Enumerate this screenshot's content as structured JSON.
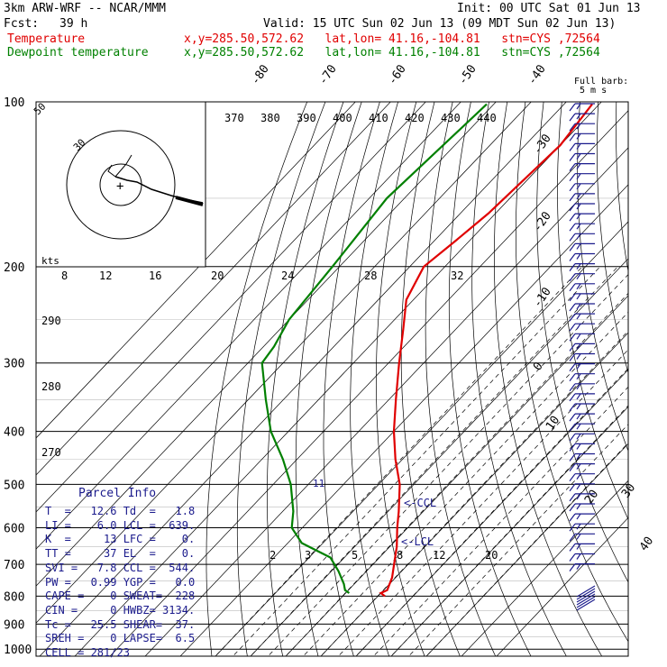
{
  "header": {
    "model": "3km ARW-WRF -- NCAR/MMM",
    "init": "Init: 00 UTC Sat 01 Jun 13",
    "fcst_label": "Fcst:",
    "fcst_value": "39 h",
    "valid": "Valid: 15 UTC Sun 02 Jun 13 (09 MDT Sun 02 Jun 13)",
    "temp_label": "Temperature",
    "temp_info": "x,y=285.50,572.62   lat,lon= 41.16,-104.81   stn=CYS ,72564",
    "dew_label": "Dewpoint temperature",
    "dew_info": "x,y=285.50,572.62   lat,lon= 41.16,-104.81   stn=CYS ,72564",
    "barb_legend_1": "Full barb:",
    "barb_legend_2": "5 m s",
    "hodo_units": "kts"
  },
  "chart_data": {
    "type": "skew-t",
    "pressure_ticks": [
      100,
      200,
      300,
      400,
      500,
      600,
      700,
      800,
      900,
      1000
    ],
    "isotherm_labels": [
      "-80",
      "-70",
      "-60",
      "-50",
      "-40",
      "-30",
      "-20",
      "-10",
      "0",
      "10",
      "20",
      "30",
      "40"
    ],
    "theta_labels": [
      "370",
      "380",
      "390",
      "400",
      "410",
      "420",
      "430",
      "440"
    ],
    "theta_left_labels": [
      "290",
      "280",
      "270"
    ],
    "mixing_ratio_labels": [
      "2",
      "3",
      "5",
      "8",
      "12",
      "20"
    ],
    "hodograph_ring_labels": [
      "8",
      "12",
      "16",
      "20",
      "24",
      "28",
      "32"
    ],
    "hodograph_corner_label": "50",
    "hodograph_ring_small": "30",
    "lcl_labels": [
      "<-CCL",
      "<-LCL"
    ],
    "temperature_profile": [
      [
        101,
        -62
      ],
      [
        120,
        -60
      ],
      [
        160,
        -62
      ],
      [
        180,
        -64
      ],
      [
        200,
        -66
      ],
      [
        230,
        -62
      ],
      [
        260,
        -55
      ],
      [
        300,
        -47
      ],
      [
        350,
        -38
      ],
      [
        400,
        -30
      ],
      [
        450,
        -22
      ],
      [
        500,
        -14
      ],
      [
        560,
        -7
      ],
      [
        600,
        -3
      ],
      [
        650,
        2
      ],
      [
        700,
        6
      ],
      [
        740,
        9
      ],
      [
        780,
        11
      ],
      [
        790,
        10
      ],
      [
        800,
        12
      ]
    ],
    "dewpoint_profile": [
      [
        101,
        -92
      ],
      [
        150,
        -95
      ],
      [
        200,
        -92
      ],
      [
        250,
        -90
      ],
      [
        280,
        -87
      ],
      [
        300,
        -86
      ],
      [
        350,
        -75
      ],
      [
        400,
        -65
      ],
      [
        450,
        -54
      ],
      [
        500,
        -45
      ],
      [
        560,
        -37
      ],
      [
        600,
        -33
      ],
      [
        640,
        -26
      ],
      [
        680,
        -14
      ],
      [
        720,
        -8
      ],
      [
        760,
        -3
      ],
      [
        780,
        -1
      ],
      [
        790,
        1
      ]
    ],
    "wind_barb_count": 47
  },
  "parcel_info": {
    "title": "Parcel Info",
    "rows": [
      "T  =   12.6 Td  =   1.8",
      "LI =    6.0 LCL =  639.",
      "K  =     13 LFC =    0.",
      "TT =     37 EL  =    0.",
      "SVI =   7.8 CCL =  544.",
      "PW =   0.99 YGP =   0.0",
      "CAPE =    0 SWEAT=  228",
      "CIN =     0 HWBZ= 3134.",
      "Tc =   25.5 SHEAR=  37.",
      "SREH =    0 LAPSE=  6.5",
      "CELL = 281/23"
    ]
  },
  "colors": {
    "temperature": "#e00000",
    "dewpoint": "#008000",
    "barbs": "#1a1a8c",
    "grid": "#000000"
  }
}
